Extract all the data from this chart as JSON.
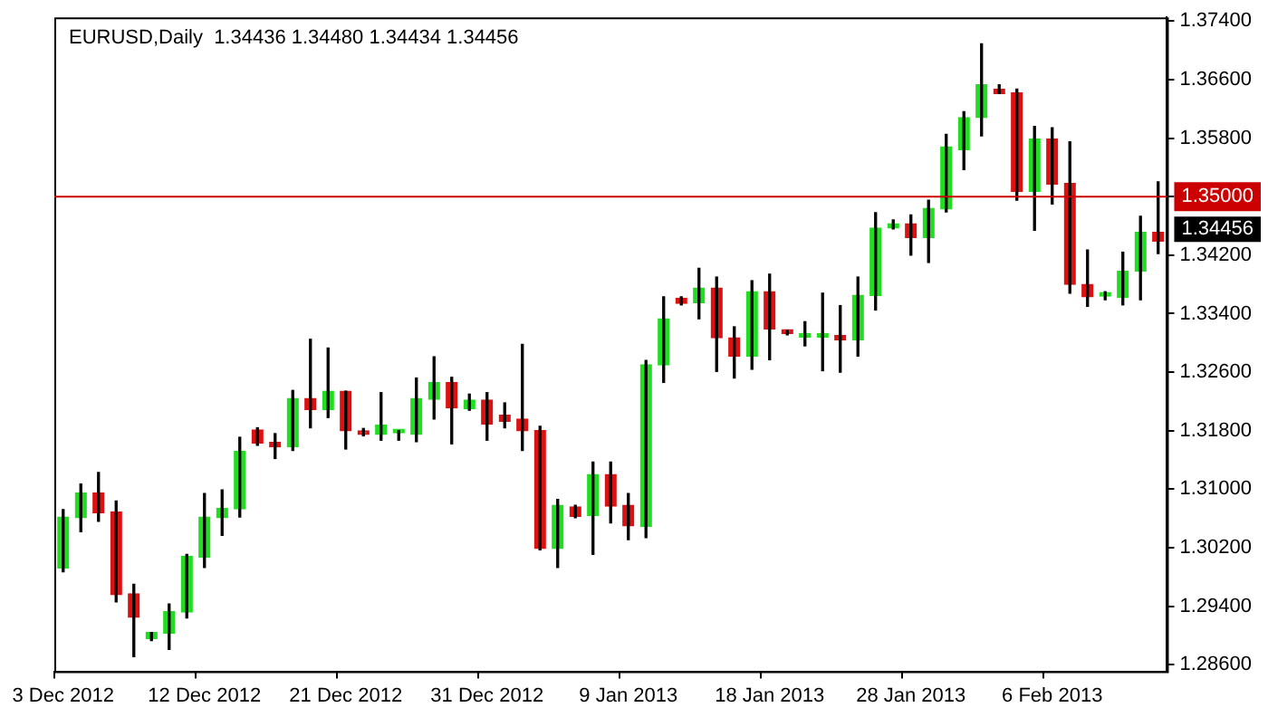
{
  "chart_data": {
    "type": "candlestick",
    "title": "EURUSD,Daily  1.34436 1.34480 1.34434 1.34456",
    "categories": [
      "3 Dec 2012",
      null,
      null,
      null,
      null,
      null,
      null,
      null,
      "12 Dec 2012",
      null,
      null,
      null,
      null,
      null,
      null,
      null,
      "21 Dec 2012",
      null,
      null,
      null,
      null,
      null,
      null,
      null,
      "31 Dec 2012",
      null,
      null,
      null,
      null,
      null,
      null,
      null,
      "9 Jan 2013",
      null,
      null,
      null,
      null,
      null,
      null,
      null,
      "18 Jan 2013",
      null,
      null,
      null,
      null,
      null,
      null,
      null,
      "28 Jan 2013",
      null,
      null,
      null,
      null,
      null,
      null,
      null,
      "6 Feb 2013",
      null,
      null,
      null,
      null,
      null,
      null
    ],
    "ohlc": [
      [
        1.2992,
        1.3072,
        1.2987,
        1.3062
      ],
      [
        1.3061,
        1.3107,
        1.3042,
        1.3095
      ],
      [
        1.3095,
        1.3123,
        1.3056,
        1.3068
      ],
      [
        1.3069,
        1.3084,
        1.2946,
        1.2956
      ],
      [
        1.2957,
        1.297,
        1.2871,
        1.2925
      ],
      [
        1.2896,
        1.2904,
        1.2893,
        1.2904
      ],
      [
        1.2903,
        1.2943,
        1.2881,
        1.2933
      ],
      [
        1.2932,
        1.3011,
        1.2924,
        1.3008
      ],
      [
        1.3007,
        1.3094,
        1.2993,
        1.3062
      ],
      [
        1.3061,
        1.3099,
        1.3037,
        1.3074
      ],
      [
        1.3073,
        1.3171,
        1.3062,
        1.3152
      ],
      [
        1.3181,
        1.3184,
        1.316,
        1.3163
      ],
      [
        1.3164,
        1.3176,
        1.3142,
        1.3158
      ],
      [
        1.3158,
        1.3235,
        1.3153,
        1.3224
      ],
      [
        1.3224,
        1.3305,
        1.3184,
        1.3209
      ],
      [
        1.3209,
        1.3293,
        1.3198,
        1.3234
      ],
      [
        1.3234,
        1.3234,
        1.3155,
        1.318
      ],
      [
        1.3176,
        1.3183,
        1.3173,
        1.3175
      ],
      [
        1.3175,
        1.3232,
        1.3167,
        1.3188
      ],
      [
        1.3177,
        1.318,
        1.3167,
        1.3178
      ],
      [
        1.3175,
        1.3252,
        1.3165,
        1.3224
      ],
      [
        1.3223,
        1.3281,
        1.3196,
        1.3246
      ],
      [
        1.3246,
        1.3253,
        1.3162,
        1.3211
      ],
      [
        1.321,
        1.323,
        1.3208,
        1.3222
      ],
      [
        1.3222,
        1.3232,
        1.3167,
        1.3189
      ],
      [
        1.3201,
        1.3218,
        1.3184,
        1.3193
      ],
      [
        1.3196,
        1.3298,
        1.3153,
        1.318
      ],
      [
        1.318,
        1.3186,
        1.3017,
        1.3019
      ],
      [
        1.3019,
        1.3086,
        1.2993,
        1.3078
      ],
      [
        1.3076,
        1.3078,
        1.3061,
        1.3063
      ],
      [
        1.3064,
        1.3137,
        1.3011,
        1.312
      ],
      [
        1.312,
        1.3137,
        1.3054,
        1.3077
      ],
      [
        1.3078,
        1.3094,
        1.3031,
        1.305
      ],
      [
        1.3049,
        1.3276,
        1.3034,
        1.327
      ],
      [
        1.327,
        1.3363,
        1.3246,
        1.3333
      ],
      [
        1.3361,
        1.3363,
        1.3352,
        1.3354
      ],
      [
        1.3355,
        1.3402,
        1.3333,
        1.3375
      ],
      [
        1.3375,
        1.339,
        1.3261,
        1.3307
      ],
      [
        1.3307,
        1.3322,
        1.3252,
        1.3282
      ],
      [
        1.3282,
        1.3385,
        1.3264,
        1.337
      ],
      [
        1.337,
        1.3394,
        1.3277,
        1.3319
      ],
      [
        1.3316,
        1.3317,
        1.3311,
        1.3313
      ],
      [
        1.3308,
        1.3329,
        1.3296,
        1.3308
      ],
      [
        1.3308,
        1.3368,
        1.3262,
        1.3308
      ],
      [
        1.331,
        1.3351,
        1.326,
        1.3304
      ],
      [
        1.3304,
        1.339,
        1.3282,
        1.3365
      ],
      [
        1.3365,
        1.3478,
        1.3345,
        1.3457
      ],
      [
        1.3457,
        1.3468,
        1.3456,
        1.3463
      ],
      [
        1.3463,
        1.3475,
        1.342,
        1.3444
      ],
      [
        1.3444,
        1.3495,
        1.341,
        1.3484
      ],
      [
        1.3483,
        1.3585,
        1.3479,
        1.3568
      ],
      [
        1.3564,
        1.3616,
        1.3537,
        1.3608
      ],
      [
        1.3608,
        1.3709,
        1.3583,
        1.3653
      ],
      [
        1.3647,
        1.3653,
        1.3641,
        1.3641
      ],
      [
        1.3642,
        1.3647,
        1.3495,
        1.3507
      ],
      [
        1.3507,
        1.3596,
        1.3454,
        1.3579
      ],
      [
        1.3579,
        1.3594,
        1.349,
        1.3517
      ],
      [
        1.3518,
        1.3575,
        1.3368,
        1.338
      ],
      [
        1.338,
        1.3427,
        1.335,
        1.3363
      ],
      [
        1.3364,
        1.337,
        1.3359,
        1.3364
      ],
      [
        1.3362,
        1.3424,
        1.3352,
        1.3398
      ],
      [
        1.3398,
        1.3473,
        1.3359,
        1.3451
      ],
      [
        1.3451,
        1.352,
        1.3422,
        1.3439
      ]
    ],
    "colors": [
      "#22dd22",
      "#22dd22",
      "#dd1111",
      "#dd1111",
      "#dd1111",
      "#22dd22",
      "#22dd22",
      "#22dd22",
      "#22dd22",
      "#22dd22",
      "#22dd22",
      "#dd1111",
      "#dd1111",
      "#22dd22",
      "#dd1111",
      "#22dd22",
      "#dd1111",
      "#dd1111",
      "#22dd22",
      "#22dd22",
      "#22dd22",
      "#22dd22",
      "#dd1111",
      "#22dd22",
      "#dd1111",
      "#dd1111",
      "#dd1111",
      "#dd1111",
      "#22dd22",
      "#dd1111",
      "#22dd22",
      "#dd1111",
      "#dd1111",
      "#22dd22",
      "#22dd22",
      "#dd1111",
      "#22dd22",
      "#dd1111",
      "#dd1111",
      "#22dd22",
      "#dd1111",
      "#dd1111",
      "#22dd22",
      "#22dd22",
      "#dd1111",
      "#22dd22",
      "#22dd22",
      "#22dd22",
      "#dd1111",
      "#22dd22",
      "#22dd22",
      "#22dd22",
      "#22dd22",
      "#dd1111",
      "#dd1111",
      "#22dd22",
      "#dd1111",
      "#dd1111",
      "#dd1111",
      "#22dd22",
      "#22dd22",
      "#22dd22",
      "#dd1111"
    ],
    "ylim": [
      1.2851,
      1.3745
    ],
    "yticks": [
      {
        "value": 1.286,
        "label": "1.28600"
      },
      {
        "value": 1.294,
        "label": "1.29400"
      },
      {
        "value": 1.302,
        "label": "1.30200"
      },
      {
        "value": 1.31,
        "label": "1.31000"
      },
      {
        "value": 1.318,
        "label": "1.31800"
      },
      {
        "value": 1.326,
        "label": "1.32600"
      },
      {
        "value": 1.334,
        "label": "1.33400"
      },
      {
        "value": 1.342,
        "label": "1.34200"
      },
      {
        "value": 1.35,
        "label": "1.35000"
      },
      {
        "value": 1.358,
        "label": "1.35800"
      },
      {
        "value": 1.366,
        "label": "1.36600"
      },
      {
        "value": 1.374,
        "label": "1.37400"
      }
    ],
    "ref_lines": [
      {
        "axis": "y",
        "value": 1.35,
        "label": "1.35000",
        "color": "#cc0000"
      }
    ],
    "annotations": [
      "1.34456"
    ]
  }
}
